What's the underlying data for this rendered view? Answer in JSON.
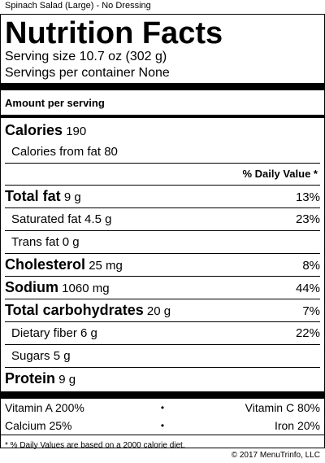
{
  "page_title": "Spinach Salad (Large) - No Dressing",
  "label": {
    "heading": "Nutrition Facts",
    "serving_size": "Serving size 10.7 oz (302 g)",
    "servings_per_container": "Servings per container None",
    "amount_per_serving": "Amount per serving",
    "calories_label": "Calories",
    "calories_value": "190",
    "calories_from_fat": "Calories from fat 80",
    "daily_value_header": "% Daily Value *",
    "nutrients": [
      {
        "label": "Total fat",
        "amount": "9 g",
        "dv": "13%"
      },
      {
        "label": "Saturated fat 4.5 g",
        "dv": "23%"
      },
      {
        "label": "Trans fat 0 g",
        "dv": ""
      },
      {
        "label": "Cholesterol",
        "amount": "25 mg",
        "dv": "8%"
      },
      {
        "label": "Sodium",
        "amount": "1060 mg",
        "dv": "44%"
      },
      {
        "label": "Total carbohydrates",
        "amount": "20 g",
        "dv": "7%"
      },
      {
        "label": "Dietary fiber 6 g",
        "dv": "22%"
      },
      {
        "label": "Sugars 5 g",
        "dv": ""
      },
      {
        "label": "Protein",
        "amount": "9 g",
        "dv": ""
      }
    ],
    "vitamins": [
      {
        "left": "Vitamin A 200%",
        "right": "Vitamin C 80%"
      },
      {
        "left": "Calcium 25%",
        "right": "Iron 20%"
      }
    ],
    "bullet": "•",
    "footnote": "* % Daily Values are based on a 2000 calorie diet."
  },
  "copyright": "© 2017 MenuTrinfo, LLC"
}
